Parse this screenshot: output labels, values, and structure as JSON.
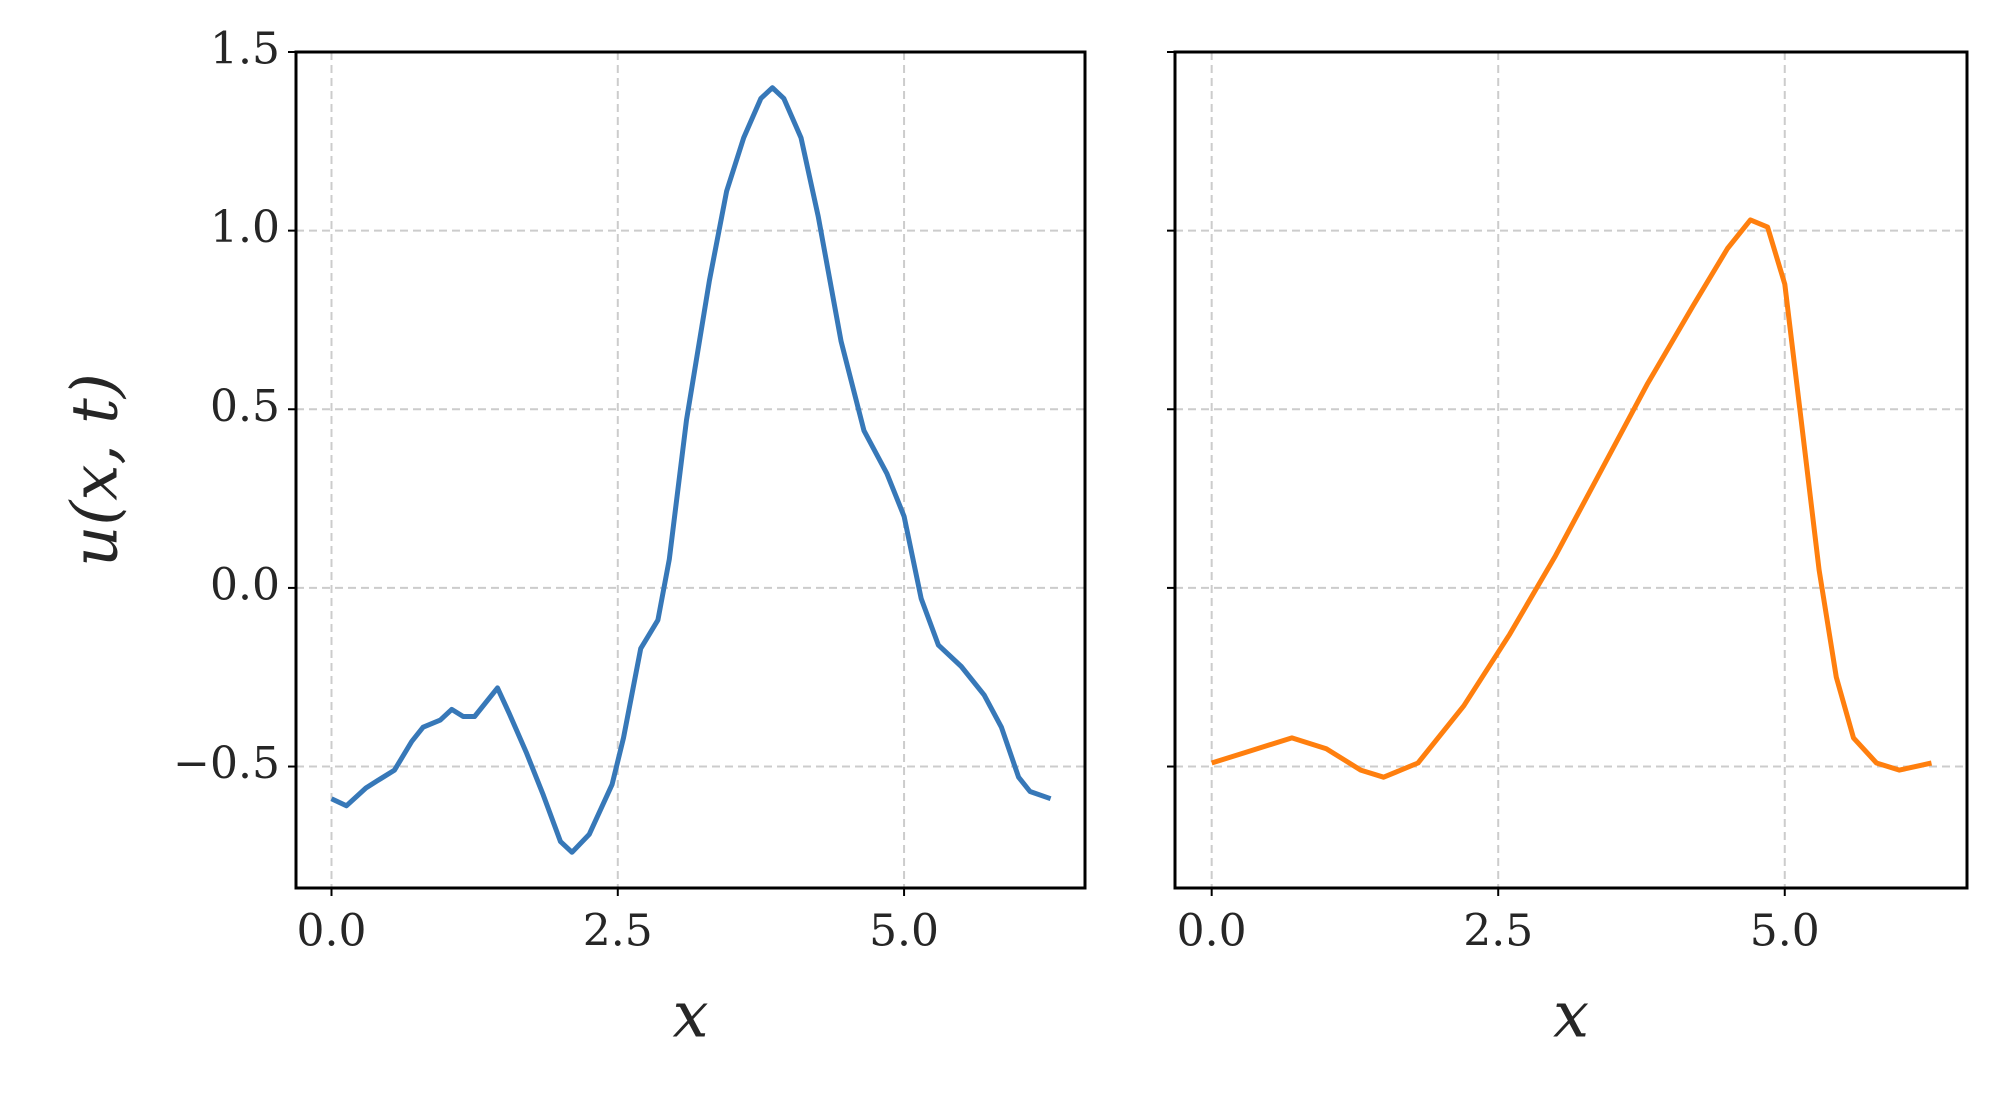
{
  "chart_data": [
    {
      "type": "line",
      "ylabel": "u(x, t)",
      "xlabel": "x",
      "grid": true,
      "xlim": [
        -0.31,
        6.58
      ],
      "ylim": [
        -0.84,
        1.5
      ],
      "xticks": [
        {
          "value": 0,
          "label": "0.0"
        },
        {
          "value": 2.5,
          "label": "2.5"
        },
        {
          "value": 5,
          "label": "5.0"
        }
      ],
      "yticks": [
        {
          "value": -0.5,
          "label": "−0.5"
        },
        {
          "value": 0,
          "label": "0.0"
        },
        0.5,
        {
          "value": 1,
          "label": "1.0"
        },
        1.5
      ],
      "series": [
        {
          "color": "#3778b8",
          "x": [
            0,
            0.13,
            0.3,
            0.4,
            0.55,
            0.7,
            0.8,
            0.95,
            1.05,
            1.15,
            1.25,
            1.45,
            1.55,
            1.7,
            1.85,
            2.0,
            2.1,
            2.25,
            2.45,
            2.55,
            2.7,
            2.85,
            2.95,
            3.1,
            3.3,
            3.45,
            3.6,
            3.75,
            3.85,
            3.95,
            4.1,
            4.25,
            4.45,
            4.65,
            4.85,
            5.0,
            5.15,
            5.3,
            5.5,
            5.7,
            5.85,
            6.0,
            6.1,
            6.28
          ],
          "values": [
            -0.59,
            -0.61,
            -0.56,
            -0.54,
            -0.51,
            -0.43,
            -0.39,
            -0.37,
            -0.34,
            -0.36,
            -0.36,
            -0.28,
            -0.35,
            -0.46,
            -0.58,
            -0.71,
            -0.74,
            -0.69,
            -0.55,
            -0.42,
            -0.17,
            -0.09,
            0.08,
            0.47,
            0.86,
            1.11,
            1.26,
            1.37,
            1.4,
            1.37,
            1.26,
            1.04,
            0.69,
            0.44,
            0.32,
            0.2,
            -0.03,
            -0.16,
            -0.22,
            -0.3,
            -0.39,
            -0.53,
            -0.57,
            -0.59
          ]
        }
      ]
    },
    {
      "type": "line",
      "xlabel": "x",
      "grid": true,
      "xlim": [
        -0.32,
        6.59
      ],
      "ylim": [
        -0.84,
        1.5
      ],
      "xticks": [
        {
          "value": 0,
          "label": "0.0"
        },
        {
          "value": 2.5,
          "label": "2.5"
        },
        {
          "value": 5,
          "label": "5.0"
        }
      ],
      "yticks": [
        -0.5,
        0,
        0.5,
        1,
        1.5
      ],
      "series": [
        {
          "color": "#ff7f0e",
          "x": [
            0,
            0.3,
            0.7,
            1.0,
            1.3,
            1.5,
            1.8,
            2.2,
            2.6,
            3.0,
            3.4,
            3.8,
            4.2,
            4.5,
            4.7,
            4.85,
            5.0,
            5.15,
            5.3,
            5.45,
            5.6,
            5.8,
            6.0,
            6.28
          ],
          "values": [
            -0.49,
            -0.46,
            -0.42,
            -0.45,
            -0.51,
            -0.53,
            -0.49,
            -0.33,
            -0.13,
            0.09,
            0.33,
            0.57,
            0.79,
            0.95,
            1.03,
            1.01,
            0.85,
            0.45,
            0.05,
            -0.25,
            -0.42,
            -0.49,
            -0.51,
            -0.49
          ]
        }
      ]
    }
  ]
}
